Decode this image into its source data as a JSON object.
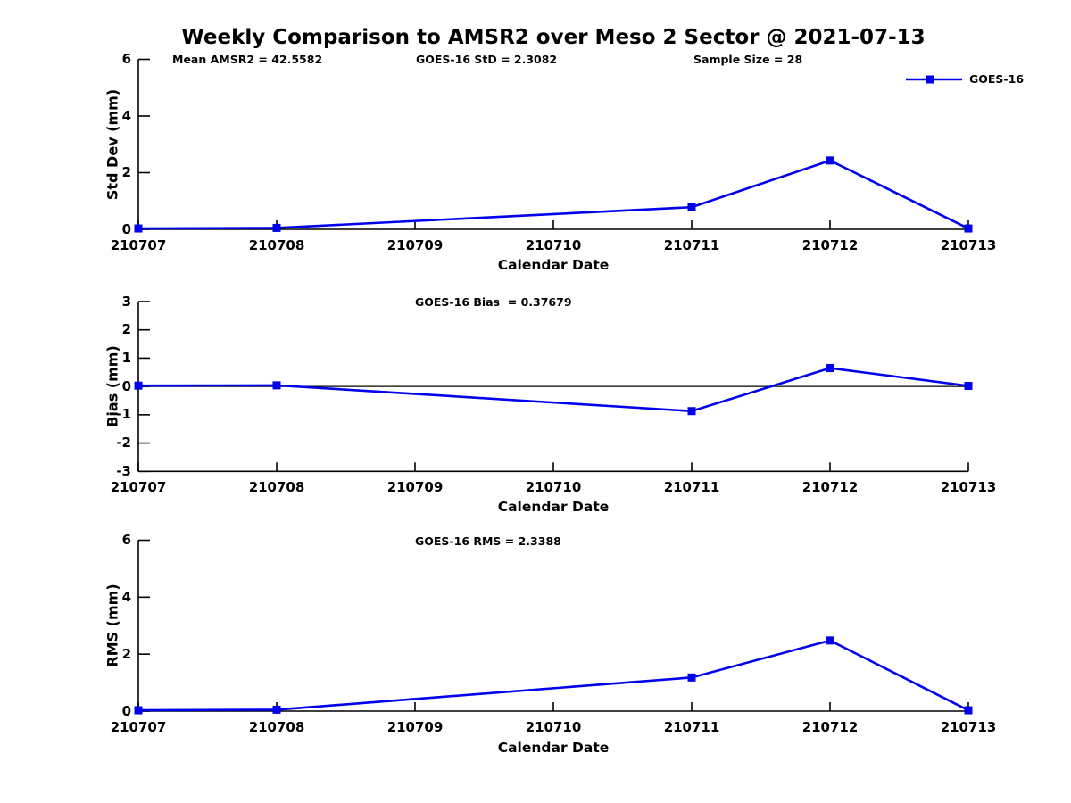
{
  "page": {
    "title": "Weekly Comparison to AMSR2 over Meso 2 Sector @ 2021-07-13",
    "background": "#ffffff",
    "text_color": "#000000"
  },
  "header_stats": [
    {
      "label": "Mean AMSR2 = 42.5582"
    },
    {
      "label": "GOES-16 StD = 2.3082"
    },
    {
      "label": "Sample Size = 28"
    }
  ],
  "legend": {
    "label": "GOES-16",
    "color": "#0000ee",
    "marker": "square",
    "position": "upper right"
  },
  "chart_data": [
    {
      "type": "line",
      "subplot": "std_dev",
      "figure_title": "Weekly Comparison to AMSR2 over Meso 2 Sector @ 2021-07-13",
      "annotations": [
        "Mean AMSR2 = 42.5582",
        "GOES-16 StD = 2.3082",
        "Sample Size = 28"
      ],
      "xlabel": "Calendar Date",
      "ylabel": "Std Dev (mm)",
      "ylim": [
        0,
        6
      ],
      "yticks": [
        0,
        2,
        4,
        6
      ],
      "x_ticklabels": [
        "210707",
        "210708",
        "210709",
        "210710",
        "210711",
        "210712",
        "210713"
      ],
      "grid": false,
      "zero_line": false,
      "series": [
        {
          "name": "GOES-16",
          "marker": "square",
          "x": [
            "210707",
            "210708",
            "210711",
            "210712",
            "210713"
          ],
          "y": [
            0.03,
            0.05,
            0.78,
            2.43,
            0.03
          ]
        }
      ]
    },
    {
      "type": "line",
      "subplot": "bias",
      "annotations": [
        "GOES-16 Bias  = 0.37679"
      ],
      "xlabel": "Calendar Date",
      "ylabel": "Bias (mm)",
      "ylim": [
        -3,
        3
      ],
      "yticks": [
        3,
        2,
        1,
        0,
        -1,
        -2,
        -3
      ],
      "x_ticklabels": [
        "210707",
        "210708",
        "210709",
        "210710",
        "210711",
        "210712",
        "210713"
      ],
      "grid": false,
      "zero_line": true,
      "series": [
        {
          "name": "GOES-16",
          "marker": "square",
          "x": [
            "210707",
            "210708",
            "210711",
            "210712",
            "210713"
          ],
          "y": [
            0.03,
            0.04,
            -0.87,
            0.65,
            0.02
          ]
        }
      ]
    },
    {
      "type": "line",
      "subplot": "rms",
      "annotations": [
        "GOES-16 RMS = 2.3388"
      ],
      "xlabel": "Calendar Date",
      "ylabel": "RMS (mm)",
      "ylim": [
        0,
        6
      ],
      "yticks": [
        0,
        2,
        4,
        6
      ],
      "x_ticklabels": [
        "210707",
        "210708",
        "210709",
        "210710",
        "210711",
        "210712",
        "210713"
      ],
      "grid": false,
      "zero_line": false,
      "series": [
        {
          "name": "GOES-16",
          "marker": "square",
          "x": [
            "210707",
            "210708",
            "210711",
            "210712",
            "210713"
          ],
          "y": [
            0.03,
            0.05,
            1.18,
            2.48,
            0.03
          ]
        }
      ]
    }
  ]
}
